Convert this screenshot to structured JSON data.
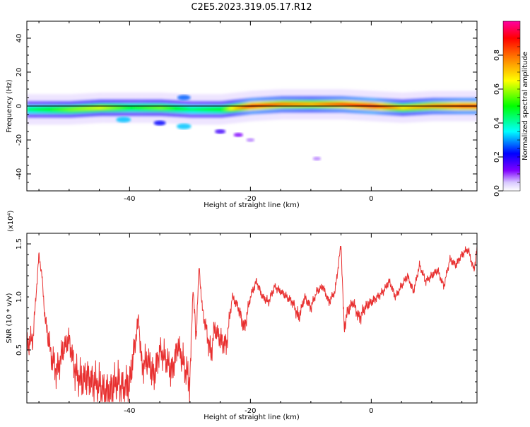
{
  "title": "C2E5.2023.319.05.17.R12",
  "chart_data": [
    {
      "type": "heatmap",
      "xlabel": "Height of straight line (km)",
      "ylabel": "Frequency (Hz)",
      "xlim": [
        -57,
        17.5
      ],
      "ylim": [
        -50,
        50
      ],
      "xticks": [
        -40,
        -20,
        0
      ],
      "yticks": [
        40,
        20,
        0,
        -20,
        -40
      ],
      "colorbar": {
        "label": "Normalized spectral amplitude",
        "range": [
          0,
          1
        ],
        "ticks": [
          "0.0",
          "0.2",
          "0.4",
          "0.6",
          "0.8"
        ],
        "colors": [
          "#ffffff",
          "#8000ff",
          "#0000ff",
          "#00ffff",
          "#00ff00",
          "#ffff00",
          "#ff8000",
          "#ff0000",
          "#ff00a0"
        ]
      },
      "ridge": {
        "x": [
          -57,
          -50,
          -45,
          -40,
          -35,
          -30,
          -25,
          -20,
          -15,
          -10,
          -5,
          0,
          5,
          10,
          15,
          17.5
        ],
        "frequency": [
          -2,
          -2,
          -1,
          -1,
          -1,
          -2,
          -2,
          0,
          1,
          1,
          1,
          0,
          -1,
          0,
          0,
          0
        ],
        "amplitude": [
          0.45,
          0.55,
          0.6,
          0.5,
          0.55,
          0.45,
          0.5,
          0.85,
          0.75,
          0.7,
          0.8,
          0.9,
          0.65,
          0.75,
          0.85,
          0.85
        ]
      },
      "blobs": [
        {
          "x": -41,
          "frequency": -8,
          "amplitude": 0.35
        },
        {
          "x": -31,
          "frequency": 5,
          "amplitude": 0.3
        },
        {
          "x": -31,
          "frequency": -12,
          "amplitude": 0.35
        },
        {
          "x": -35,
          "frequency": -10,
          "amplitude": 0.25
        },
        {
          "x": -25,
          "frequency": -15,
          "amplitude": 0.2
        },
        {
          "x": -22,
          "frequency": -17,
          "amplitude": 0.15
        },
        {
          "x": -20,
          "frequency": -20,
          "amplitude": 0.1
        },
        {
          "x": -9,
          "frequency": -31,
          "amplitude": 0.1
        }
      ]
    },
    {
      "type": "line",
      "xlabel": "Height of straight line (km)",
      "ylabel": "SNR (10 * v/v)",
      "multiplier": "(x10⁴)",
      "xlim": [
        -57,
        17.5
      ],
      "ylim": [
        0,
        1.6
      ],
      "xticks": [
        -40,
        -20,
        0
      ],
      "yticks": [
        "0.5",
        "1.0",
        "1.5"
      ],
      "ytick_values": [
        0.5,
        1.0,
        1.5
      ],
      "color": "#e83030",
      "x": [
        -57,
        -56,
        -55,
        -54.5,
        -54,
        -53,
        -52,
        -51,
        -50,
        -49,
        -48,
        -47,
        -46,
        -45,
        -44,
        -43,
        -42,
        -41,
        -40,
        -39,
        -38.5,
        -38,
        -37,
        -36,
        -35,
        -34,
        -33,
        -32,
        -31,
        -30,
        -29.5,
        -29,
        -28.5,
        -28,
        -27,
        -26.5,
        -26,
        -25,
        -24,
        -23,
        -22,
        -21,
        -20,
        -19,
        -18,
        -17,
        -16,
        -15,
        -14,
        -13,
        -12,
        -11,
        -10,
        -9,
        -8,
        -7,
        -6,
        -5,
        -4.5,
        -4,
        -3,
        -2,
        -1,
        0,
        1,
        2,
        3,
        4,
        5,
        6,
        7,
        8,
        9,
        10,
        11,
        12,
        13,
        14,
        15,
        16,
        17,
        17.5
      ],
      "y": [
        0.55,
        0.6,
        1.4,
        1.2,
        0.8,
        0.45,
        0.3,
        0.5,
        0.6,
        0.3,
        0.2,
        0.25,
        0.2,
        0.15,
        0.1,
        0.12,
        0.2,
        0.15,
        0.18,
        0.6,
        0.8,
        0.35,
        0.4,
        0.25,
        0.5,
        0.4,
        0.3,
        0.55,
        0.35,
        0.2,
        1.1,
        0.6,
        1.3,
        0.9,
        0.6,
        0.45,
        0.7,
        0.6,
        0.55,
        1.0,
        0.9,
        0.7,
        1.0,
        1.15,
        1.0,
        0.95,
        1.1,
        1.05,
        1.0,
        0.95,
        0.8,
        1.0,
        0.9,
        1.05,
        1.1,
        0.95,
        1.05,
        1.5,
        0.7,
        0.85,
        0.95,
        0.8,
        0.9,
        0.95,
        1.0,
        1.05,
        1.15,
        1.0,
        1.1,
        1.2,
        1.05,
        1.3,
        1.15,
        1.2,
        1.25,
        1.1,
        1.35,
        1.3,
        1.4,
        1.45,
        1.25,
        1.45
      ]
    }
  ]
}
